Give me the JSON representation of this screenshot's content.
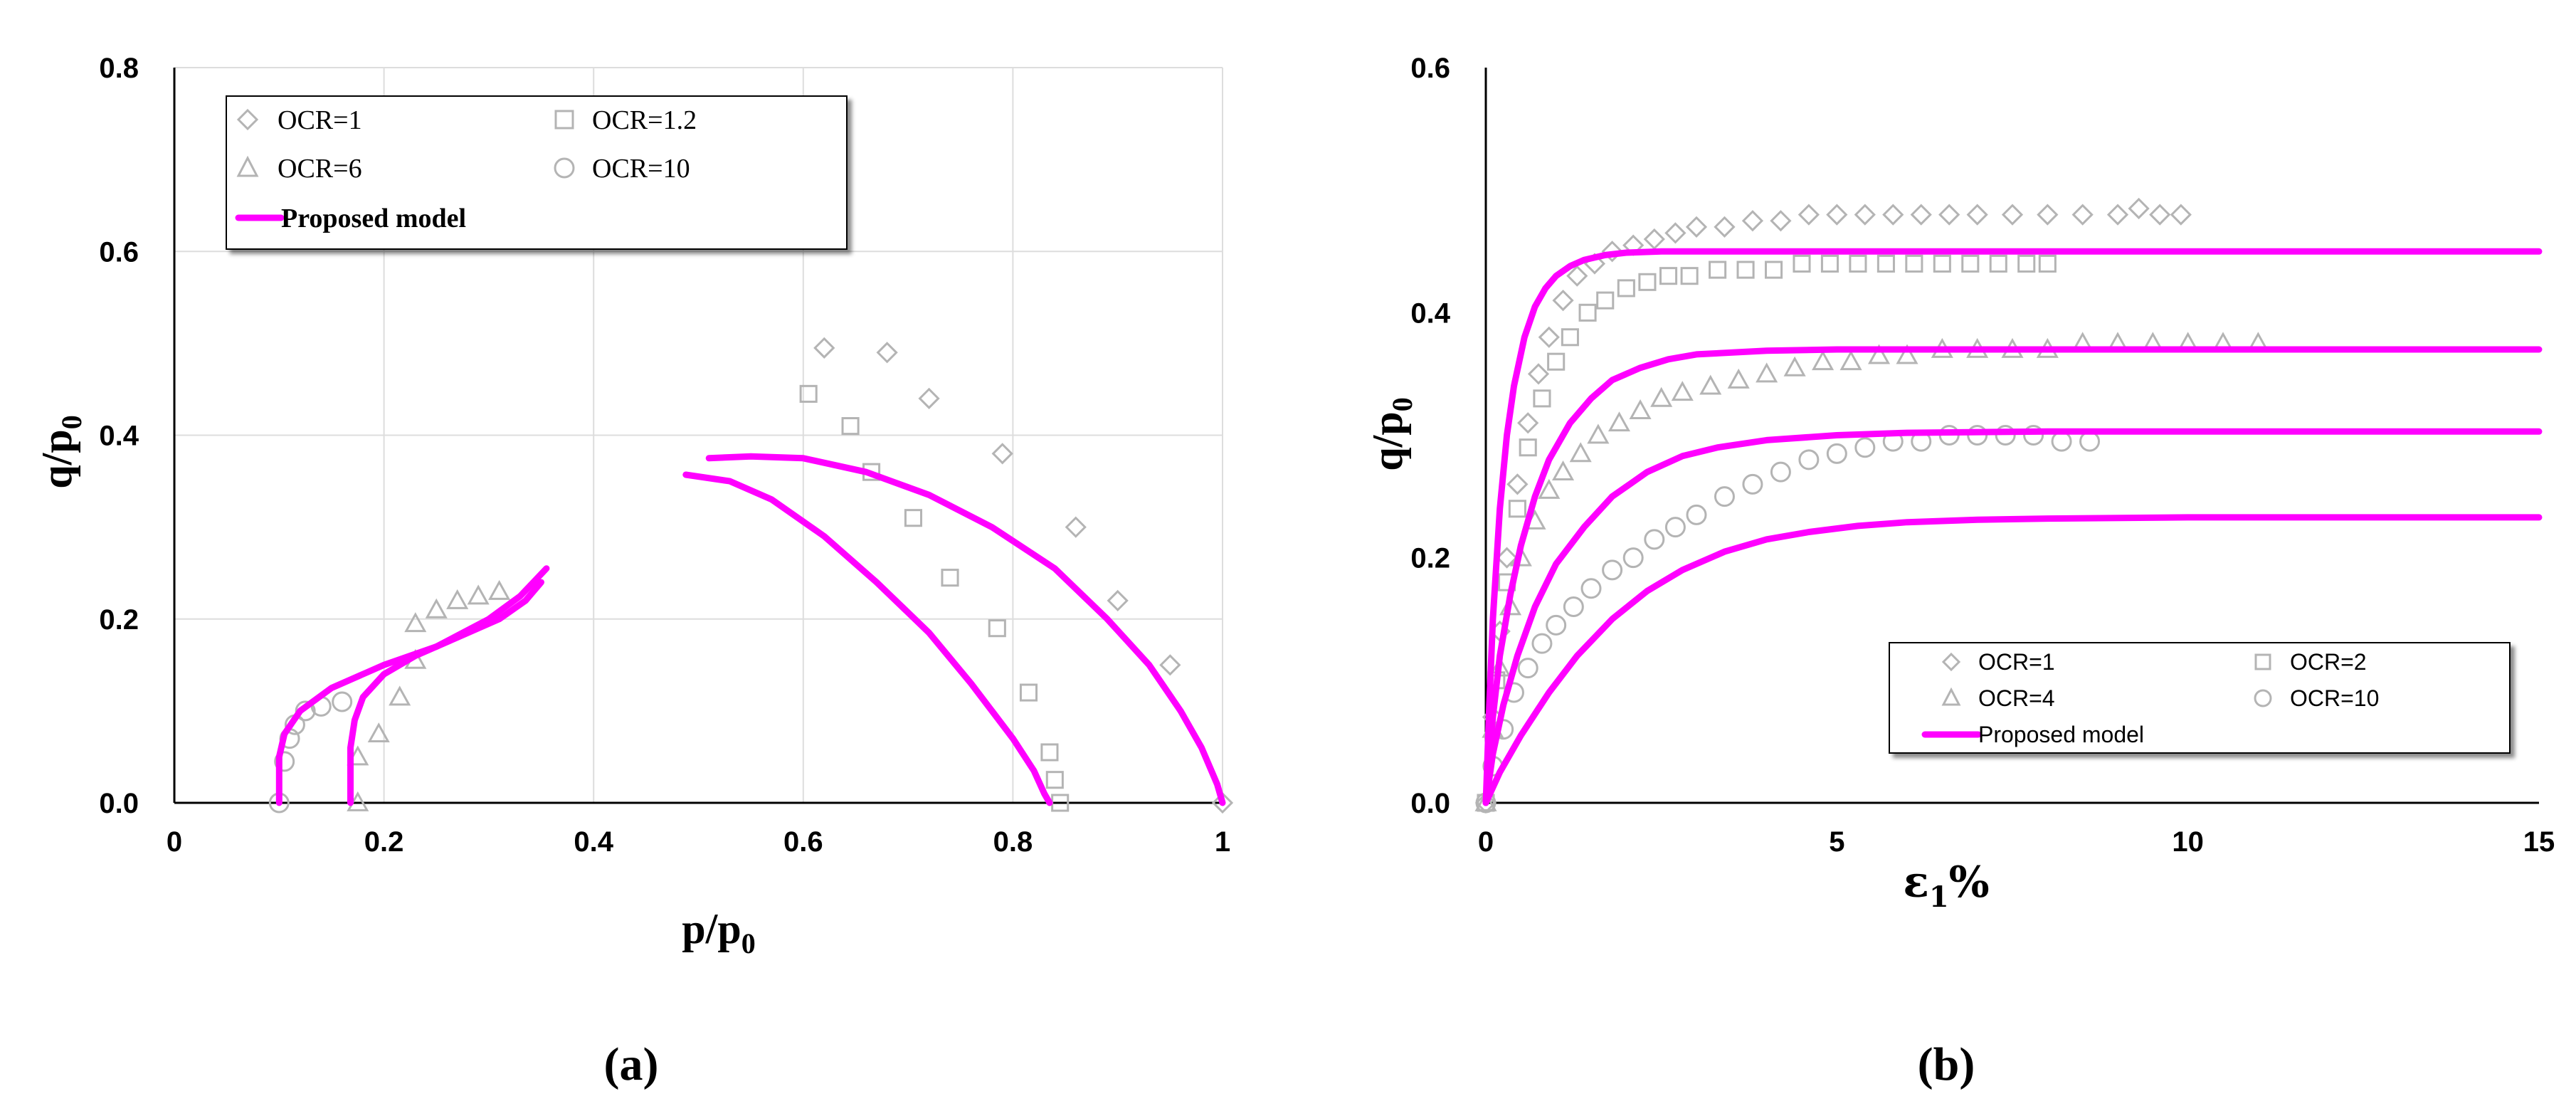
{
  "colors": {
    "model": "#ff00ff",
    "marker": "#b4b4b4",
    "grid": "#dddddd",
    "axis": "#000000"
  },
  "chart_data": [
    {
      "panel_label": "(a)",
      "type": "scatter",
      "xlabel": "p/p",
      "xlabel_sub": "0",
      "ylabel": "q/p",
      "ylabel_sub": "0",
      "xlim": [
        0,
        1
      ],
      "ylim": [
        0,
        0.8
      ],
      "xticks": [
        "0",
        "0.2",
        "0.4",
        "0.6",
        "0.8",
        "1"
      ],
      "yticks": [
        "0.0",
        "0.2",
        "0.4",
        "0.6",
        "0.8"
      ],
      "grid": true,
      "legend_position": "top-left",
      "legend": [
        {
          "label": "OCR=1",
          "marker": "diamond"
        },
        {
          "label": "OCR=1.2",
          "marker": "square"
        },
        {
          "label": "OCR=6",
          "marker": "triangle"
        },
        {
          "label": "OCR=10",
          "marker": "circle"
        },
        {
          "label": "Proposed model",
          "marker": "line"
        }
      ],
      "series": [
        {
          "marker": "diamond",
          "x": [
            0.62,
            0.68,
            0.72,
            0.79,
            0.86,
            0.9,
            0.95,
            1.0
          ],
          "y": [
            0.495,
            0.49,
            0.44,
            0.38,
            0.3,
            0.22,
            0.15,
            0.0
          ]
        },
        {
          "marker": "square",
          "x": [
            0.605,
            0.645,
            0.665,
            0.705,
            0.74,
            0.785,
            0.815,
            0.835,
            0.84,
            0.845
          ],
          "y": [
            0.445,
            0.41,
            0.36,
            0.31,
            0.245,
            0.19,
            0.12,
            0.055,
            0.025,
            0.0
          ]
        },
        {
          "marker": "triangle",
          "x": [
            0.175,
            0.175,
            0.195,
            0.215,
            0.23,
            0.23,
            0.25,
            0.27,
            0.29,
            0.31
          ],
          "y": [
            0.0,
            0.05,
            0.075,
            0.115,
            0.155,
            0.195,
            0.21,
            0.22,
            0.225,
            0.23
          ]
        },
        {
          "marker": "circle",
          "x": [
            0.1,
            0.105,
            0.11,
            0.115,
            0.125,
            0.14,
            0.16
          ],
          "y": [
            0.0,
            0.045,
            0.07,
            0.085,
            0.1,
            0.105,
            0.11
          ]
        }
      ],
      "model_curves": [
        {
          "x": [
            0.1,
            0.1,
            0.105,
            0.12,
            0.15,
            0.2,
            0.25,
            0.3,
            0.33,
            0.355
          ],
          "y": [
            0.0,
            0.05,
            0.075,
            0.1,
            0.125,
            0.15,
            0.17,
            0.2,
            0.225,
            0.255
          ]
        },
        {
          "x": [
            0.168,
            0.168,
            0.172,
            0.18,
            0.2,
            0.23,
            0.27,
            0.31,
            0.335,
            0.35
          ],
          "y": [
            0.0,
            0.06,
            0.09,
            0.115,
            0.14,
            0.16,
            0.18,
            0.2,
            0.22,
            0.24
          ]
        },
        {
          "x": [
            0.488,
            0.53,
            0.57,
            0.62,
            0.67,
            0.72,
            0.76,
            0.8,
            0.82,
            0.83,
            0.835
          ],
          "y": [
            0.357,
            0.35,
            0.33,
            0.29,
            0.24,
            0.185,
            0.13,
            0.07,
            0.035,
            0.01,
            0.0
          ]
        },
        {
          "x": [
            0.51,
            0.55,
            0.6,
            0.66,
            0.72,
            0.78,
            0.84,
            0.89,
            0.93,
            0.96,
            0.98,
            0.995,
            1.0
          ],
          "y": [
            0.375,
            0.377,
            0.375,
            0.36,
            0.335,
            0.3,
            0.255,
            0.2,
            0.15,
            0.1,
            0.06,
            0.02,
            0.0
          ]
        }
      ]
    },
    {
      "panel_label": "(b)",
      "type": "scatter",
      "xlabel": "ε",
      "xlabel_sub": "1",
      "xlabel_suffix": "%",
      "ylabel": "q/p",
      "ylabel_sub": "0",
      "xlim": [
        0,
        15
      ],
      "ylim": [
        0,
        0.6
      ],
      "xticks": [
        "0",
        "5",
        "10",
        "15"
      ],
      "yticks": [
        "0.0",
        "0.2",
        "0.4",
        "0.6"
      ],
      "grid": false,
      "legend_position": "bottom-right",
      "legend": [
        {
          "label": "OCR=1",
          "marker": "diamond"
        },
        {
          "label": "OCR=2",
          "marker": "square"
        },
        {
          "label": "OCR=4",
          "marker": "triangle"
        },
        {
          "label": "OCR=10",
          "marker": "circle"
        },
        {
          "label": "Proposed model",
          "marker": "line"
        }
      ],
      "series": [
        {
          "marker": "diamond",
          "x": [
            0.0,
            0.1,
            0.2,
            0.3,
            0.45,
            0.6,
            0.75,
            0.9,
            1.1,
            1.3,
            1.55,
            1.8,
            2.1,
            2.4,
            2.7,
            3.0,
            3.4,
            3.8,
            4.2,
            4.6,
            5.0,
            5.4,
            5.8,
            6.2,
            6.6,
            7.0,
            7.5,
            8.0,
            8.5,
            9.0,
            9.3,
            9.6,
            9.9
          ],
          "y": [
            0.0,
            0.07,
            0.14,
            0.2,
            0.26,
            0.31,
            0.35,
            0.38,
            0.41,
            0.43,
            0.44,
            0.45,
            0.455,
            0.46,
            0.465,
            0.47,
            0.47,
            0.475,
            0.475,
            0.48,
            0.48,
            0.48,
            0.48,
            0.48,
            0.48,
            0.48,
            0.48,
            0.48,
            0.48,
            0.48,
            0.485,
            0.48,
            0.48
          ]
        },
        {
          "marker": "square",
          "x": [
            0.0,
            0.15,
            0.3,
            0.45,
            0.6,
            0.8,
            1.0,
            1.2,
            1.45,
            1.7,
            2.0,
            2.3,
            2.6,
            2.9,
            3.3,
            3.7,
            4.1,
            4.5,
            4.9,
            5.3,
            5.7,
            6.1,
            6.5,
            6.9,
            7.3,
            7.7,
            8.0
          ],
          "y": [
            0.0,
            0.1,
            0.18,
            0.24,
            0.29,
            0.33,
            0.36,
            0.38,
            0.4,
            0.41,
            0.42,
            0.425,
            0.43,
            0.43,
            0.435,
            0.435,
            0.435,
            0.44,
            0.44,
            0.44,
            0.44,
            0.44,
            0.44,
            0.44,
            0.44,
            0.44,
            0.44
          ]
        },
        {
          "marker": "triangle",
          "x": [
            0.0,
            0.1,
            0.2,
            0.35,
            0.5,
            0.7,
            0.9,
            1.1,
            1.35,
            1.6,
            1.9,
            2.2,
            2.5,
            2.8,
            3.2,
            3.6,
            4.0,
            4.4,
            4.8,
            5.2,
            5.6,
            6.0,
            6.5,
            7.0,
            7.5,
            8.0,
            8.5,
            9.0,
            9.5,
            10.0,
            10.5,
            11.0
          ],
          "y": [
            0.0,
            0.06,
            0.11,
            0.16,
            0.2,
            0.23,
            0.255,
            0.27,
            0.285,
            0.3,
            0.31,
            0.32,
            0.33,
            0.335,
            0.34,
            0.345,
            0.35,
            0.355,
            0.36,
            0.36,
            0.365,
            0.365,
            0.37,
            0.37,
            0.37,
            0.37,
            0.375,
            0.375,
            0.375,
            0.375,
            0.375,
            0.375
          ]
        },
        {
          "marker": "circle",
          "x": [
            0.0,
            0.1,
            0.25,
            0.4,
            0.6,
            0.8,
            1.0,
            1.25,
            1.5,
            1.8,
            2.1,
            2.4,
            2.7,
            3.0,
            3.4,
            3.8,
            4.2,
            4.6,
            5.0,
            5.4,
            5.8,
            6.2,
            6.6,
            7.0,
            7.4,
            7.8,
            8.2,
            8.6
          ],
          "y": [
            0.0,
            0.03,
            0.06,
            0.09,
            0.11,
            0.13,
            0.145,
            0.16,
            0.175,
            0.19,
            0.2,
            0.215,
            0.225,
            0.235,
            0.25,
            0.26,
            0.27,
            0.28,
            0.285,
            0.29,
            0.295,
            0.295,
            0.3,
            0.3,
            0.3,
            0.3,
            0.295,
            0.295
          ]
        }
      ],
      "model_curves": [
        {
          "x": [
            0.0,
            0.05,
            0.1,
            0.2,
            0.3,
            0.4,
            0.55,
            0.7,
            0.85,
            1.0,
            1.2,
            1.4,
            1.7,
            2.0,
            2.5,
            3.0,
            4.0,
            6.0,
            10.0,
            15.0
          ],
          "y": [
            0.0,
            0.08,
            0.15,
            0.24,
            0.3,
            0.34,
            0.38,
            0.405,
            0.42,
            0.43,
            0.438,
            0.443,
            0.447,
            0.449,
            0.45,
            0.45,
            0.45,
            0.45,
            0.45,
            0.45
          ]
        },
        {
          "x": [
            0.0,
            0.1,
            0.2,
            0.35,
            0.5,
            0.7,
            0.9,
            1.2,
            1.5,
            1.8,
            2.2,
            2.6,
            3.0,
            4.0,
            5.0,
            7.0,
            10.0,
            15.0
          ],
          "y": [
            0.0,
            0.07,
            0.12,
            0.17,
            0.21,
            0.25,
            0.28,
            0.31,
            0.33,
            0.345,
            0.355,
            0.362,
            0.366,
            0.369,
            0.37,
            0.37,
            0.37,
            0.37
          ]
        },
        {
          "x": [
            0.0,
            0.1,
            0.25,
            0.45,
            0.7,
            1.0,
            1.4,
            1.8,
            2.3,
            2.8,
            3.3,
            4.0,
            5.0,
            6.0,
            8.0,
            10.0,
            15.0
          ],
          "y": [
            0.0,
            0.04,
            0.08,
            0.12,
            0.16,
            0.195,
            0.225,
            0.25,
            0.27,
            0.283,
            0.29,
            0.296,
            0.3,
            0.302,
            0.303,
            0.303,
            0.303
          ]
        },
        {
          "x": [
            0.0,
            0.2,
            0.5,
            0.9,
            1.3,
            1.8,
            2.3,
            2.8,
            3.4,
            4.0,
            4.6,
            5.3,
            6.0,
            7.0,
            8.0,
            10.0,
            12.0,
            15.0
          ],
          "y": [
            0.0,
            0.025,
            0.055,
            0.09,
            0.12,
            0.15,
            0.173,
            0.19,
            0.205,
            0.215,
            0.221,
            0.226,
            0.229,
            0.231,
            0.232,
            0.233,
            0.233,
            0.233
          ]
        }
      ]
    }
  ]
}
